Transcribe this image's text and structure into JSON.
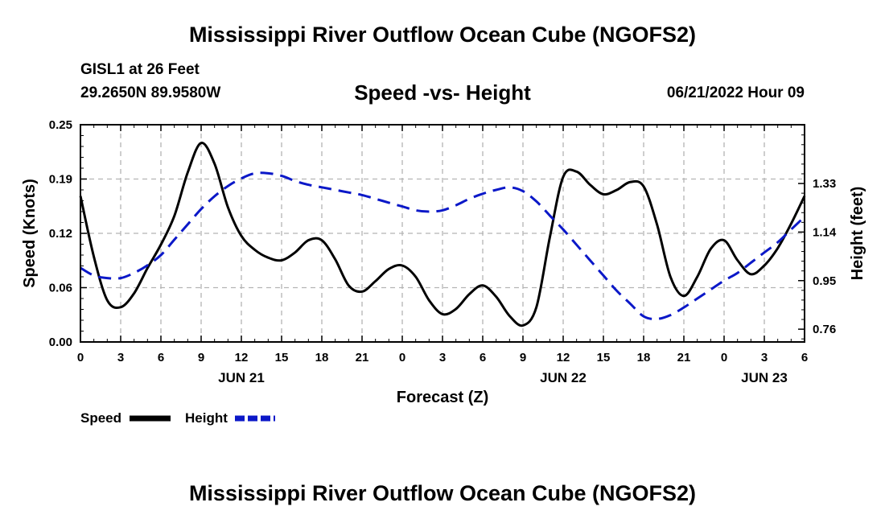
{
  "header": {
    "title": "Mississippi River Outflow Ocean Cube (NGOFS2)",
    "station": "GISL1 at 26 Feet",
    "coords": "29.2650N  89.9580W",
    "subtitle": "Speed -vs- Height",
    "datetime": "06/21/2022 Hour 09"
  },
  "footer": {
    "title": "Mississippi River Outflow Ocean Cube (NGOFS2)"
  },
  "colors": {
    "speed": "#000000",
    "height": "#0b18c8",
    "grid": "#b4b4b4"
  },
  "chart_data": {
    "type": "line",
    "title": "Speed -vs- Height",
    "xlabel": "Forecast (Z)",
    "ylabel": "Speed (Knots)",
    "y2label": "Height (feet)",
    "xlim": [
      0,
      54
    ],
    "ylim": [
      0,
      0.25
    ],
    "y2lim": [
      0.71,
      1.56
    ],
    "xticks": [
      0,
      3,
      6,
      9,
      12,
      15,
      18,
      21,
      24,
      27,
      30,
      33,
      36,
      39,
      42,
      45,
      48,
      51,
      54
    ],
    "xtick_labels": [
      "0",
      "3",
      "6",
      "9",
      "12",
      "15",
      "18",
      "21",
      "0",
      "3",
      "6",
      "9",
      "12",
      "15",
      "18",
      "21",
      "0",
      "3",
      "6"
    ],
    "date_labels": [
      {
        "x": 12,
        "label": "JUN 21"
      },
      {
        "x": 36,
        "label": "JUN 22"
      },
      {
        "x": 51,
        "label": "JUN 23"
      }
    ],
    "yticks": [
      0.0,
      0.0625,
      0.125,
      0.1875,
      0.25
    ],
    "ytick_labels": [
      "0.00",
      "0.06",
      "0.12",
      "0.19",
      "0.25"
    ],
    "y2ticks": [
      0.76,
      0.95,
      1.14,
      1.33
    ],
    "y2tick_labels": [
      "0.76",
      "0.95",
      "1.14",
      "1.33"
    ],
    "grid": true,
    "legend": [
      {
        "name": "Speed",
        "style": "solid"
      },
      {
        "name": "Height",
        "style": "dashed"
      }
    ],
    "series": [
      {
        "name": "Speed",
        "axis": "left",
        "x": [
          0,
          1,
          2,
          3,
          4,
          5,
          6,
          7,
          8,
          9,
          10,
          11,
          12,
          13,
          14,
          15,
          16,
          17,
          18,
          19,
          20,
          21,
          22,
          23,
          24,
          25,
          26,
          27,
          28,
          29,
          30,
          31,
          32,
          33,
          34,
          35,
          36,
          37,
          38,
          39,
          40,
          41,
          42,
          43,
          44,
          45,
          46,
          47,
          48,
          49,
          50,
          51,
          52,
          53,
          54
        ],
        "values": [
          0.168,
          0.098,
          0.048,
          0.04,
          0.056,
          0.085,
          0.112,
          0.145,
          0.195,
          0.229,
          0.205,
          0.155,
          0.122,
          0.106,
          0.097,
          0.094,
          0.103,
          0.117,
          0.117,
          0.095,
          0.065,
          0.058,
          0.07,
          0.084,
          0.088,
          0.075,
          0.048,
          0.032,
          0.038,
          0.055,
          0.065,
          0.052,
          0.03,
          0.019,
          0.04,
          0.12,
          0.19,
          0.196,
          0.181,
          0.17,
          0.175,
          0.184,
          0.179,
          0.135,
          0.075,
          0.053,
          0.075,
          0.107,
          0.117,
          0.094,
          0.078,
          0.088,
          0.108,
          0.136,
          0.168
        ]
      },
      {
        "name": "Height",
        "axis": "right",
        "x": [
          0,
          1,
          2,
          3,
          4,
          5,
          6,
          7,
          8,
          9,
          10,
          11,
          12,
          13,
          14,
          15,
          16,
          17,
          18,
          19,
          20,
          21,
          22,
          23,
          24,
          25,
          26,
          27,
          28,
          29,
          30,
          31,
          32,
          33,
          34,
          35,
          36,
          37,
          38,
          39,
          40,
          41,
          42,
          43,
          44,
          45,
          46,
          47,
          48,
          49,
          50,
          51,
          52,
          53,
          54
        ],
        "values": [
          1.0,
          0.97,
          0.96,
          0.96,
          0.98,
          1.01,
          1.05,
          1.11,
          1.17,
          1.23,
          1.28,
          1.32,
          1.35,
          1.37,
          1.37,
          1.36,
          1.34,
          1.325,
          1.315,
          1.305,
          1.295,
          1.285,
          1.27,
          1.255,
          1.24,
          1.225,
          1.22,
          1.225,
          1.245,
          1.27,
          1.29,
          1.305,
          1.315,
          1.3,
          1.26,
          1.205,
          1.15,
          1.09,
          1.03,
          0.97,
          0.91,
          0.86,
          0.81,
          0.8,
          0.815,
          0.845,
          0.88,
          0.915,
          0.95,
          0.98,
          1.02,
          1.06,
          1.1,
          1.15,
          1.2
        ]
      }
    ]
  }
}
